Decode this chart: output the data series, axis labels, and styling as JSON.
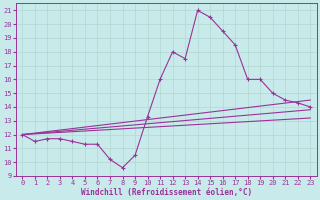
{
  "xlabel": "Windchill (Refroidissement éolien,°C)",
  "xlim": [
    -0.5,
    23.5
  ],
  "ylim": [
    9,
    21.5
  ],
  "yticks": [
    9,
    10,
    11,
    12,
    13,
    14,
    15,
    16,
    17,
    18,
    19,
    20,
    21
  ],
  "xticks": [
    0,
    1,
    2,
    3,
    4,
    5,
    6,
    7,
    8,
    9,
    10,
    11,
    12,
    13,
    14,
    15,
    16,
    17,
    18,
    19,
    20,
    21,
    22,
    23
  ],
  "bg_color": "#c8eaea",
  "line_color": "#993399",
  "grid_color": "#b0d8d0",
  "series": [
    {
      "x": [
        0,
        1,
        2,
        3,
        4,
        5,
        6,
        7,
        8,
        9,
        10,
        11,
        12,
        13,
        14,
        15,
        16,
        17,
        18,
        19,
        20,
        21,
        22,
        23
      ],
      "y": [
        12,
        11.5,
        11.7,
        11.7,
        11.5,
        11.3,
        11.3,
        10.2,
        9.6,
        10.5,
        13.3,
        16.0,
        18.0,
        17.5,
        21.0,
        20.5,
        19.5,
        18.5,
        16.0,
        16.0,
        15.0,
        14.5,
        14.3,
        14.0
      ]
    },
    {
      "x": [
        0,
        23
      ],
      "y": [
        12.0,
        14.5
      ]
    },
    {
      "x": [
        0,
        23
      ],
      "y": [
        12.0,
        13.8
      ]
    },
    {
      "x": [
        0,
        23
      ],
      "y": [
        12.0,
        13.2
      ]
    }
  ]
}
